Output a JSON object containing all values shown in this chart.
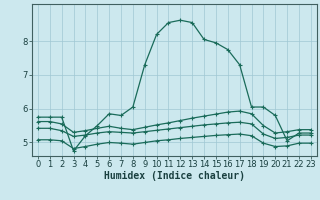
{
  "xlabel": "Humidex (Indice chaleur)",
  "bg_color": "#cce8ee",
  "grid_color": "#a0c8d4",
  "line_color": "#1a6b5a",
  "xlim": [
    -0.5,
    23.5
  ],
  "ylim": [
    4.6,
    9.1
  ],
  "yticks": [
    5,
    6,
    7,
    8
  ],
  "xticks": [
    0,
    1,
    2,
    3,
    4,
    5,
    6,
    7,
    8,
    9,
    10,
    11,
    12,
    13,
    14,
    15,
    16,
    17,
    18,
    19,
    20,
    21,
    22,
    23
  ],
  "line1_x": [
    0,
    1,
    2,
    3,
    4,
    5,
    6,
    7,
    8,
    9,
    10,
    11,
    12,
    13,
    14,
    15,
    16,
    17,
    18,
    19,
    20,
    21,
    22,
    23
  ],
  "line1_y": [
    5.75,
    5.75,
    5.75,
    4.75,
    5.2,
    5.5,
    5.85,
    5.8,
    6.05,
    7.3,
    8.2,
    8.55,
    8.62,
    8.55,
    8.05,
    7.95,
    7.75,
    7.3,
    6.05,
    6.05,
    5.8,
    5.05,
    5.28,
    5.28
  ],
  "line2_x": [
    0,
    1,
    2,
    3,
    4,
    5,
    6,
    7,
    8,
    9,
    10,
    11,
    12,
    13,
    14,
    15,
    16,
    17,
    18,
    19,
    20,
    21,
    22,
    23
  ],
  "line2_y": [
    5.62,
    5.62,
    5.55,
    5.3,
    5.35,
    5.42,
    5.48,
    5.42,
    5.38,
    5.45,
    5.52,
    5.58,
    5.65,
    5.72,
    5.78,
    5.84,
    5.9,
    5.93,
    5.85,
    5.5,
    5.28,
    5.32,
    5.38,
    5.38
  ],
  "line3_x": [
    0,
    1,
    2,
    3,
    4,
    5,
    6,
    7,
    8,
    9,
    10,
    11,
    12,
    13,
    14,
    15,
    16,
    17,
    18,
    19,
    20,
    21,
    22,
    23
  ],
  "line3_y": [
    5.42,
    5.42,
    5.35,
    5.18,
    5.22,
    5.28,
    5.32,
    5.3,
    5.28,
    5.32,
    5.36,
    5.4,
    5.44,
    5.48,
    5.52,
    5.55,
    5.58,
    5.6,
    5.55,
    5.25,
    5.12,
    5.15,
    5.22,
    5.22
  ],
  "line4_x": [
    0,
    1,
    2,
    3,
    4,
    5,
    6,
    7,
    8,
    9,
    10,
    11,
    12,
    13,
    14,
    15,
    16,
    17,
    18,
    19,
    20,
    21,
    22,
    23
  ],
  "line4_y": [
    5.08,
    5.08,
    5.05,
    4.82,
    4.88,
    4.95,
    5.0,
    4.98,
    4.95,
    5.0,
    5.05,
    5.08,
    5.12,
    5.15,
    5.18,
    5.21,
    5.23,
    5.25,
    5.2,
    4.98,
    4.88,
    4.9,
    4.98,
    4.98
  ],
  "marker": "+",
  "markersize": 3,
  "linewidth": 0.9,
  "xlabel_fontsize": 7,
  "tick_fontsize": 6
}
